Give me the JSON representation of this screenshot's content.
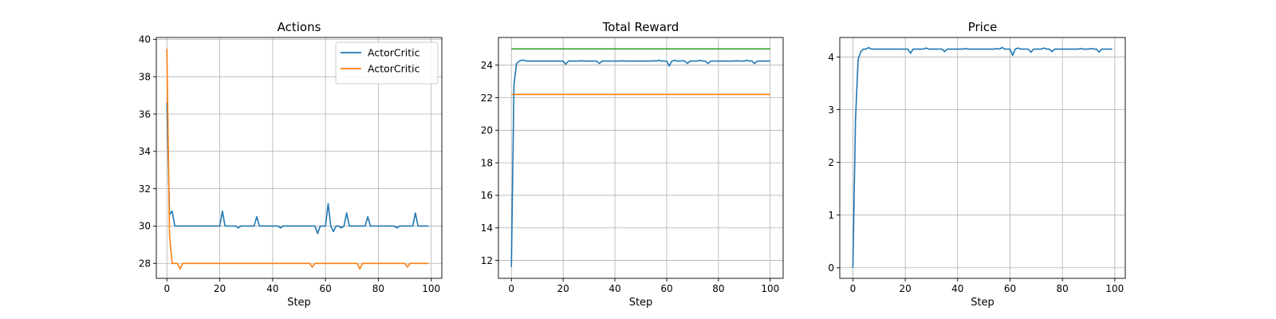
{
  "figure": {
    "background": "#ffffff",
    "grid_color": "#b0b0b0"
  },
  "chart_data": [
    {
      "type": "line",
      "title": "Actions",
      "xlabel": "Step",
      "ylabel": "",
      "xlim": [
        -4,
        104
      ],
      "ylim": [
        27.2,
        40.1
      ],
      "xticks": [
        0,
        20,
        40,
        60,
        80,
        100
      ],
      "yticks": [
        28,
        30,
        32,
        34,
        36,
        38,
        40
      ],
      "grid": true,
      "legend": {
        "position": "upper-right",
        "entries": [
          "ActorCritic",
          "ActorCritic"
        ]
      },
      "series": [
        {
          "name": "ActorCritic",
          "color": "#1f77b4",
          "x": [
            0,
            1,
            2,
            3,
            4,
            5,
            6,
            7,
            8,
            9,
            10,
            11,
            12,
            13,
            14,
            15,
            16,
            17,
            18,
            19,
            20,
            21,
            22,
            23,
            24,
            25,
            26,
            27,
            28,
            29,
            30,
            31,
            32,
            33,
            34,
            35,
            36,
            37,
            38,
            39,
            40,
            41,
            42,
            43,
            44,
            45,
            46,
            47,
            48,
            49,
            50,
            51,
            52,
            53,
            54,
            55,
            56,
            57,
            58,
            59,
            60,
            61,
            62,
            63,
            64,
            65,
            66,
            67,
            68,
            69,
            70,
            71,
            72,
            73,
            74,
            75,
            76,
            77,
            78,
            79,
            80,
            81,
            82,
            83,
            84,
            85,
            86,
            87,
            88,
            89,
            90,
            91,
            92,
            93,
            94,
            95,
            96,
            97,
            98,
            99
          ],
          "y": [
            36.6,
            30.6,
            30.8,
            30.0,
            30.0,
            30.0,
            30.0,
            30.0,
            30.0,
            30.0,
            30.0,
            30.0,
            30.0,
            30.0,
            30.0,
            30.0,
            30.0,
            30.0,
            30.0,
            30.0,
            30.0,
            30.8,
            30.0,
            30.0,
            30.0,
            30.0,
            30.0,
            29.9,
            30.0,
            30.0,
            30.0,
            30.0,
            30.0,
            30.0,
            30.5,
            30.0,
            30.0,
            30.0,
            30.0,
            30.0,
            30.0,
            30.0,
            30.0,
            29.9,
            30.0,
            30.0,
            30.0,
            30.0,
            30.0,
            30.0,
            30.0,
            30.0,
            30.0,
            30.0,
            30.0,
            30.0,
            30.0,
            29.6,
            30.0,
            30.0,
            30.0,
            31.2,
            30.0,
            29.7,
            30.0,
            30.0,
            29.9,
            30.0,
            30.7,
            30.0,
            30.0,
            30.0,
            30.0,
            30.0,
            30.0,
            30.0,
            30.5,
            30.0,
            30.0,
            30.0,
            30.0,
            30.0,
            30.0,
            30.0,
            30.0,
            30.0,
            30.0,
            29.9,
            30.0,
            30.0,
            30.0,
            30.0,
            30.0,
            30.0,
            30.7,
            30.0,
            30.0,
            30.0,
            30.0,
            30.0
          ]
        },
        {
          "name": "ActorCritic",
          "color": "#ff7f0e",
          "x": [
            0,
            1,
            2,
            3,
            4,
            5,
            6,
            7,
            8,
            9,
            10,
            11,
            12,
            13,
            14,
            15,
            16,
            17,
            18,
            19,
            20,
            21,
            22,
            23,
            24,
            25,
            26,
            27,
            28,
            29,
            30,
            31,
            32,
            33,
            34,
            35,
            36,
            37,
            38,
            39,
            40,
            41,
            42,
            43,
            44,
            45,
            46,
            47,
            48,
            49,
            50,
            51,
            52,
            53,
            54,
            55,
            56,
            57,
            58,
            59,
            60,
            61,
            62,
            63,
            64,
            65,
            66,
            67,
            68,
            69,
            70,
            71,
            72,
            73,
            74,
            75,
            76,
            77,
            78,
            79,
            80,
            81,
            82,
            83,
            84,
            85,
            86,
            87,
            88,
            89,
            90,
            91,
            92,
            93,
            94,
            95,
            96,
            97,
            98,
            99
          ],
          "y": [
            39.5,
            29.5,
            28.0,
            28.0,
            28.0,
            27.7,
            28.0,
            28.0,
            28.0,
            28.0,
            28.0,
            28.0,
            28.0,
            28.0,
            28.0,
            28.0,
            28.0,
            28.0,
            28.0,
            28.0,
            28.0,
            28.0,
            28.0,
            28.0,
            28.0,
            28.0,
            28.0,
            28.0,
            28.0,
            28.0,
            28.0,
            28.0,
            28.0,
            28.0,
            28.0,
            28.0,
            28.0,
            28.0,
            28.0,
            28.0,
            28.0,
            28.0,
            28.0,
            28.0,
            28.0,
            28.0,
            28.0,
            28.0,
            28.0,
            28.0,
            28.0,
            28.0,
            28.0,
            28.0,
            28.0,
            27.8,
            28.0,
            28.0,
            28.0,
            28.0,
            28.0,
            28.0,
            28.0,
            28.0,
            28.0,
            28.0,
            28.0,
            28.0,
            28.0,
            28.0,
            28.0,
            28.0,
            28.0,
            27.7,
            28.0,
            28.0,
            28.0,
            28.0,
            28.0,
            28.0,
            28.0,
            28.0,
            28.0,
            28.0,
            28.0,
            28.0,
            28.0,
            28.0,
            28.0,
            28.0,
            28.0,
            27.8,
            28.0,
            28.0,
            28.0,
            28.0,
            28.0,
            28.0,
            28.0,
            28.0
          ]
        }
      ]
    },
    {
      "type": "line",
      "title": "Total Reward",
      "xlabel": "Step",
      "ylabel": "",
      "xlim": [
        -5,
        105
      ],
      "ylim": [
        10.9,
        25.7
      ],
      "xticks": [
        0,
        20,
        40,
        60,
        80,
        100
      ],
      "yticks": [
        12,
        14,
        16,
        18,
        20,
        22,
        24
      ],
      "grid": true,
      "series": [
        {
          "color": "#1f77b4",
          "x": [
            0,
            1,
            2,
            3,
            4,
            5,
            6,
            7,
            8,
            9,
            10,
            11,
            12,
            13,
            14,
            15,
            16,
            17,
            18,
            19,
            20,
            21,
            22,
            23,
            24,
            25,
            26,
            27,
            28,
            29,
            30,
            31,
            32,
            33,
            34,
            35,
            36,
            37,
            38,
            39,
            40,
            41,
            42,
            43,
            44,
            45,
            46,
            47,
            48,
            49,
            50,
            51,
            52,
            53,
            54,
            55,
            56,
            57,
            58,
            59,
            60,
            61,
            62,
            63,
            64,
            65,
            66,
            67,
            68,
            69,
            70,
            71,
            72,
            73,
            74,
            75,
            76,
            77,
            78,
            79,
            80,
            81,
            82,
            83,
            84,
            85,
            86,
            87,
            88,
            89,
            90,
            91,
            92,
            93,
            94,
            95,
            96,
            97,
            98,
            99,
            100
          ],
          "y": [
            11.6,
            22.8,
            24.1,
            24.25,
            24.3,
            24.3,
            24.25,
            24.25,
            24.25,
            24.25,
            24.25,
            24.25,
            24.25,
            24.25,
            24.25,
            24.25,
            24.25,
            24.25,
            24.25,
            24.25,
            24.25,
            24.05,
            24.25,
            24.25,
            24.25,
            24.25,
            24.25,
            24.27,
            24.25,
            24.25,
            24.25,
            24.25,
            24.25,
            24.25,
            24.1,
            24.25,
            24.25,
            24.25,
            24.25,
            24.25,
            24.25,
            24.25,
            24.25,
            24.27,
            24.25,
            24.25,
            24.25,
            24.25,
            24.25,
            24.25,
            24.25,
            24.25,
            24.25,
            24.25,
            24.25,
            24.27,
            24.25,
            24.3,
            24.25,
            24.25,
            24.25,
            23.95,
            24.25,
            24.3,
            24.25,
            24.25,
            24.27,
            24.25,
            24.1,
            24.25,
            24.25,
            24.25,
            24.25,
            24.3,
            24.25,
            24.25,
            24.1,
            24.25,
            24.25,
            24.25,
            24.25,
            24.25,
            24.25,
            24.25,
            24.25,
            24.25,
            24.25,
            24.27,
            24.25,
            24.25,
            24.25,
            24.3,
            24.25,
            24.25,
            24.1,
            24.25,
            24.25,
            24.25,
            24.25,
            24.25,
            24.25
          ]
        },
        {
          "color": "#ff7f0e",
          "x": [
            0,
            100
          ],
          "y": [
            22.2,
            22.2
          ]
        },
        {
          "color": "#2ca02c",
          "x": [
            0,
            100
          ],
          "y": [
            25.0,
            25.0
          ]
        }
      ]
    },
    {
      "type": "line",
      "title": "Price",
      "xlabel": "Step",
      "ylabel": "",
      "xlim": [
        -5,
        104
      ],
      "ylim": [
        -0.2,
        4.37
      ],
      "xticks": [
        0,
        20,
        40,
        60,
        80,
        100
      ],
      "yticks": [
        0,
        1,
        2,
        3,
        4
      ],
      "grid": true,
      "series": [
        {
          "color": "#1f77b4",
          "x": [
            0,
            1,
            2,
            3,
            4,
            5,
            6,
            7,
            8,
            9,
            10,
            11,
            12,
            13,
            14,
            15,
            16,
            17,
            18,
            19,
            20,
            21,
            22,
            23,
            24,
            25,
            26,
            27,
            28,
            29,
            30,
            31,
            32,
            33,
            34,
            35,
            36,
            37,
            38,
            39,
            40,
            41,
            42,
            43,
            44,
            45,
            46,
            47,
            48,
            49,
            50,
            51,
            52,
            53,
            54,
            55,
            56,
            57,
            58,
            59,
            60,
            61,
            62,
            63,
            64,
            65,
            66,
            67,
            68,
            69,
            70,
            71,
            72,
            73,
            74,
            75,
            76,
            77,
            78,
            79,
            80,
            81,
            82,
            83,
            84,
            85,
            86,
            87,
            88,
            89,
            90,
            91,
            92,
            93,
            94,
            95,
            96,
            97,
            98,
            99
          ],
          "y": [
            0.0,
            2.8,
            3.95,
            4.1,
            4.15,
            4.15,
            4.18,
            4.15,
            4.15,
            4.15,
            4.15,
            4.15,
            4.15,
            4.15,
            4.15,
            4.15,
            4.15,
            4.15,
            4.15,
            4.15,
            4.15,
            4.15,
            4.07,
            4.15,
            4.15,
            4.15,
            4.15,
            4.15,
            4.17,
            4.15,
            4.15,
            4.15,
            4.15,
            4.15,
            4.15,
            4.1,
            4.15,
            4.15,
            4.15,
            4.15,
            4.15,
            4.15,
            4.15,
            4.16,
            4.15,
            4.15,
            4.15,
            4.15,
            4.15,
            4.15,
            4.15,
            4.15,
            4.15,
            4.15,
            4.15,
            4.16,
            4.15,
            4.18,
            4.15,
            4.15,
            4.15,
            4.03,
            4.15,
            4.17,
            4.15,
            4.15,
            4.15,
            4.15,
            4.09,
            4.15,
            4.15,
            4.15,
            4.15,
            4.17,
            4.15,
            4.15,
            4.1,
            4.15,
            4.15,
            4.15,
            4.15,
            4.15,
            4.15,
            4.15,
            4.15,
            4.15,
            4.15,
            4.16,
            4.15,
            4.15,
            4.15,
            4.16,
            4.15,
            4.15,
            4.09,
            4.15,
            4.15,
            4.15,
            4.15,
            4.15
          ]
        }
      ]
    }
  ]
}
